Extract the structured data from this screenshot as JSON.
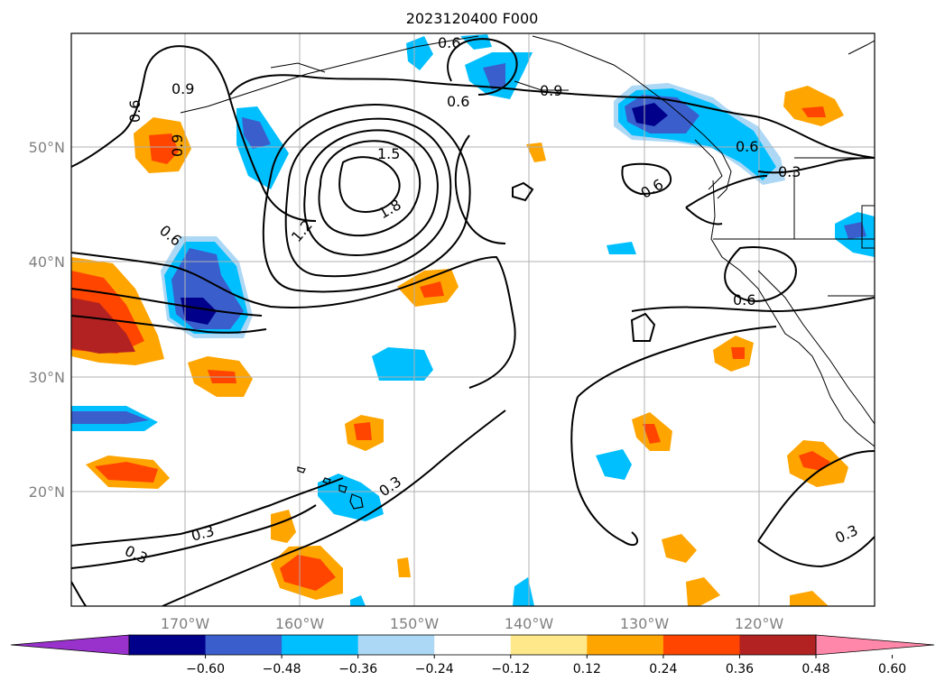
{
  "title": "2023120400 F000",
  "lat_labels": [
    "50°N",
    "40°N",
    "30°N",
    "20°N"
  ],
  "lon_labels": [
    "170°W",
    "160°W",
    "150°W",
    "140°W",
    "130°W",
    "120°W"
  ],
  "contour_labels": [
    "0.6",
    "0.9",
    "0.6",
    "0.9",
    "0.6",
    "1.5",
    "1.8",
    "1.2",
    "0.9",
    "0.6",
    "0.6",
    "0.3",
    "0.6",
    "0.6",
    "0.3",
    "0.3",
    "0.3",
    "0.3"
  ],
  "colorbar": {
    "tick_labels": [
      "−0.60",
      "−0.48",
      "−0.36",
      "−0.24",
      "−0.12",
      "0.12",
      "0.24",
      "0.36",
      "0.48",
      "0.60"
    ],
    "colors": [
      "#9932cc",
      "#00008b",
      "#3a5fcd",
      "#00bfff",
      "#add8f5",
      "#ffffff",
      "#ffe88a",
      "#ffa500",
      "#ff4500",
      "#b22222",
      "#ff88aa"
    ]
  }
}
